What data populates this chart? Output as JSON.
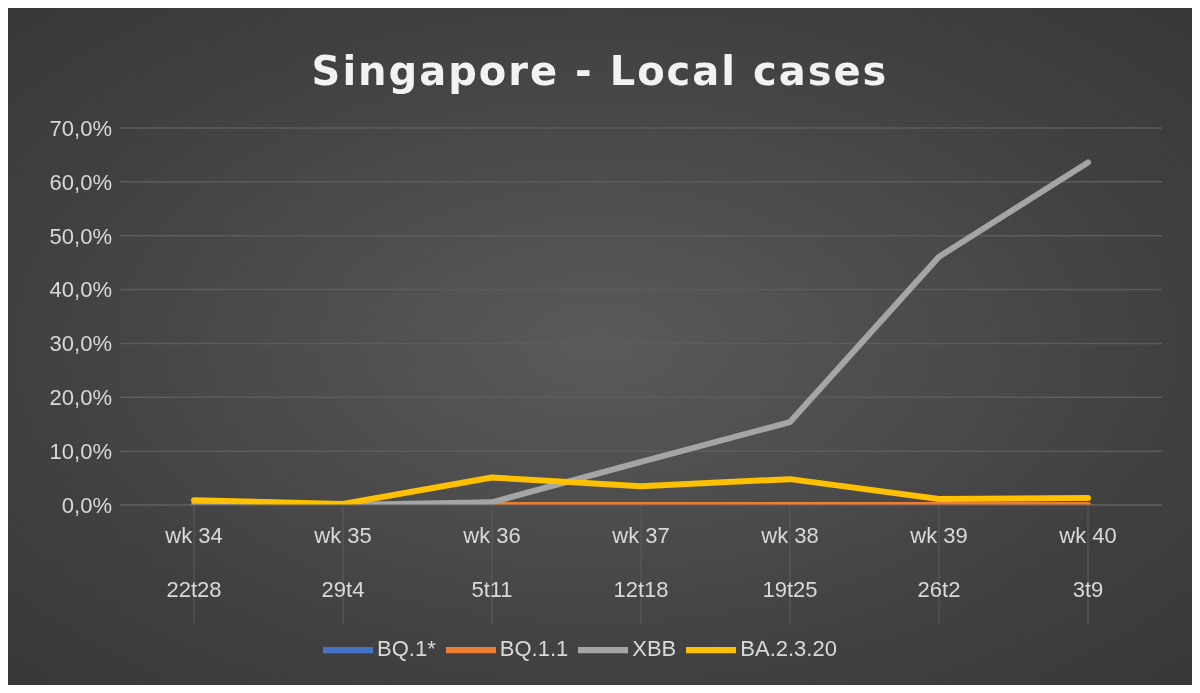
{
  "chart_data": {
    "type": "line",
    "title": "Singapore - Local cases",
    "categories": [
      "wk 34\n22t28",
      "wk 35\n29t4",
      "wk 36\n5t11",
      "wk 37\n12t18",
      "wk 38\n19t25",
      "wk 39\n26t2",
      "wk 40\n3t9"
    ],
    "series": [
      {
        "name": "BQ.1*",
        "color": "#4472c4",
        "values": [
          null,
          null,
          null,
          null,
          null,
          null,
          null
        ]
      },
      {
        "name": "BQ.1.1",
        "color": "#ed7d31",
        "values": [
          null,
          null,
          0,
          0,
          0,
          0,
          0
        ]
      },
      {
        "name": "XBB",
        "color": "#a5a5a5",
        "values": [
          0,
          0,
          0.5,
          8.0,
          15.4,
          46.1,
          63.6
        ]
      },
      {
        "name": "BA.2.3.20",
        "color": "#ffc000",
        "values": [
          0.9,
          0.2,
          5.1,
          3.5,
          4.8,
          1.1,
          1.3
        ]
      }
    ],
    "ylim": [
      0,
      70
    ],
    "yticks": [
      {
        "value": 0,
        "label": "0,0%"
      },
      {
        "value": 10,
        "label": "10,0%"
      },
      {
        "value": 20,
        "label": "20,0%"
      },
      {
        "value": 30,
        "label": "30,0%"
      },
      {
        "value": 40,
        "label": "40,0%"
      },
      {
        "value": 50,
        "label": "50,0%"
      },
      {
        "value": 60,
        "label": "60,0%"
      },
      {
        "value": 70,
        "label": "70,0%"
      }
    ],
    "grid": "y",
    "legend": "bottom",
    "marker": "none",
    "line_style": "solid"
  }
}
